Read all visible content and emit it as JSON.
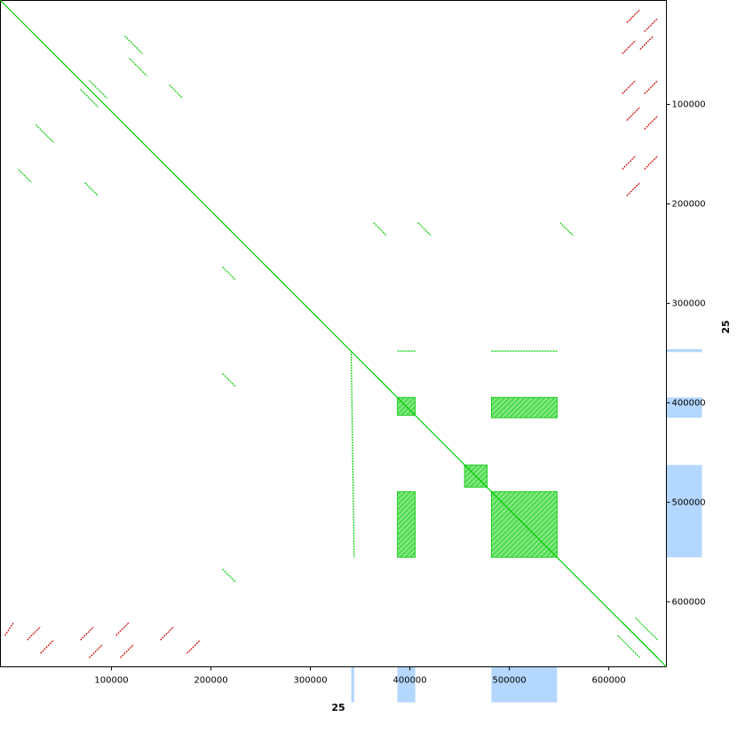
{
  "chart_data": {
    "type": "dotplot",
    "x_label": "25",
    "y_label": "25",
    "xlim": [
      -11600,
      657900
    ],
    "ylim": [
      -4500,
      665400
    ],
    "xticks": [
      100000,
      200000,
      300000,
      400000,
      500000,
      600000
    ],
    "yticks": [
      100000,
      200000,
      300000,
      400000,
      500000,
      600000
    ],
    "coverage_color": "#b3d7ff",
    "x_coverage": [
      [
        341000,
        344000
      ],
      [
        387500,
        405400
      ],
      [
        482000,
        548000
      ]
    ],
    "y_coverage": [
      [
        346000,
        349000
      ],
      [
        394600,
        415000
      ],
      [
        462500,
        555300
      ]
    ],
    "block_color": "#22cc22",
    "blocks": [
      [
        387500,
        394600,
        405400,
        412500
      ],
      [
        482000,
        394600,
        548000,
        415000
      ],
      [
        387500,
        489300,
        405400,
        555300
      ],
      [
        482000,
        489300,
        548000,
        555300
      ],
      [
        455000,
        462500,
        477700,
        484800
      ]
    ],
    "series": [
      {
        "color": "#00cc00",
        "segments": [
          [
            -11600,
            -4500,
            657900,
            665400
          ],
          [
            24100,
            31300,
            42000,
            49100
          ],
          [
            46400,
            53600,
            64300,
            71400
          ],
          [
            113400,
            31300,
            131300,
            49100
          ],
          [
            117900,
            53600,
            135700,
            71400
          ],
          [
            24100,
            120600,
            42000,
            138400
          ],
          [
            113400,
            120600,
            131300,
            138400
          ],
          [
            68800,
            84800,
            86600,
            102700
          ],
          [
            77700,
            75900,
            95500,
            93800
          ],
          [
            149100,
            156300,
            167000,
            174100
          ],
          [
            167000,
            174100,
            184800,
            192000
          ],
          [
            6300,
            165200,
            19600,
            178600
          ],
          [
            73200,
            178600,
            86600,
            192000
          ],
          [
            158100,
            80400,
            171500,
            93800
          ],
          [
            202700,
            209900,
            220600,
            227700
          ],
          [
            256300,
            263400,
            274200,
            281300
          ],
          [
            292000,
            299200,
            309900,
            317000
          ],
          [
            363500,
            370600,
            381300,
            388500
          ],
          [
            613500,
            620600,
            649200,
            656300
          ],
          [
            626900,
            616200,
            649200,
            638500
          ],
          [
            609000,
            634000,
            631400,
            656300
          ],
          [
            211600,
            263400,
            225000,
            276800
          ],
          [
            363500,
            218800,
            376800,
            232200
          ],
          [
            408100,
            218800,
            421500,
            232200
          ],
          [
            211600,
            370600,
            225000,
            384000
          ],
          [
            551000,
            218800,
            564400,
            232200
          ],
          [
            211600,
            567100,
            225000,
            580500
          ],
          [
            341000,
            348000,
            344000,
            555300
          ],
          [
            387500,
            348000,
            405400,
            348000
          ],
          [
            482000,
            348000,
            548000,
            348000
          ]
        ]
      },
      {
        "color": "#cc0000",
        "segments": [
          [
            618000,
            17900,
            631400,
            4500
          ],
          [
            635800,
            26800,
            649200,
            13400
          ],
          [
            613500,
            49100,
            626900,
            35700
          ],
          [
            631400,
            44700,
            644800,
            31300
          ],
          [
            613500,
            89300,
            626900,
            75900
          ],
          [
            635800,
            89300,
            649200,
            75900
          ],
          [
            618000,
            116100,
            631400,
            102700
          ],
          [
            635800,
            125000,
            649200,
            111600
          ],
          [
            613500,
            165200,
            626900,
            151800
          ],
          [
            635800,
            165200,
            649200,
            151800
          ],
          [
            618000,
            192000,
            631400,
            178600
          ],
          [
            -7100,
            634000,
            1800,
            620600
          ],
          [
            15200,
            638500,
            28600,
            625100
          ],
          [
            28600,
            651900,
            42000,
            638500
          ],
          [
            68800,
            638500,
            82200,
            625100
          ],
          [
            77700,
            656300,
            91100,
            643000
          ],
          [
            104500,
            634000,
            117900,
            620600
          ],
          [
            108900,
            656300,
            122300,
            643000
          ],
          [
            149100,
            638500,
            162500,
            625100
          ],
          [
            175900,
            651900,
            189300,
            638500
          ]
        ]
      }
    ]
  }
}
